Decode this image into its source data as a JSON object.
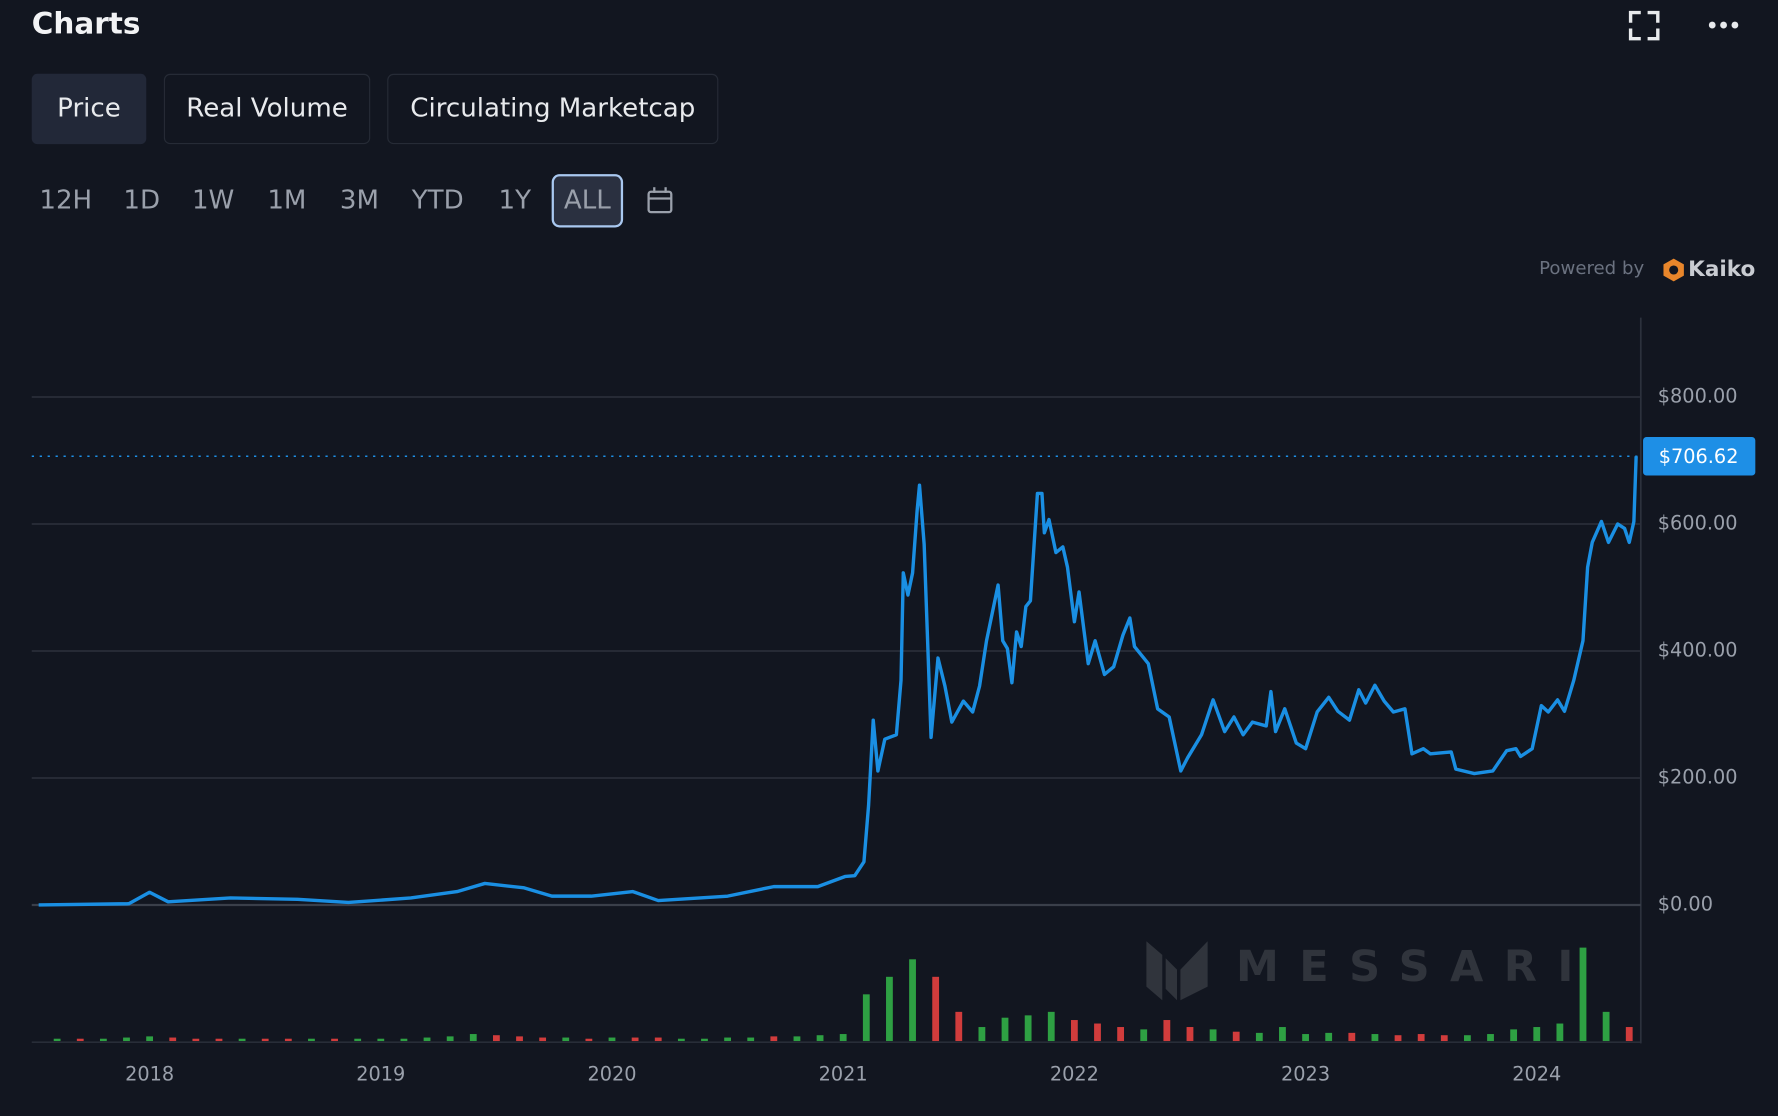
{
  "header": {
    "title": "Charts"
  },
  "tabs": [
    "Price",
    "Real Volume",
    "Circulating Marketcap"
  ],
  "ranges": [
    "12H",
    "1D",
    "1W",
    "1M",
    "3M",
    "YTD",
    "1Y",
    "ALL"
  ],
  "powered": {
    "text": "Powered by",
    "brand": "Kaiko"
  },
  "watermark": "MESSARI",
  "chart_data": {
    "type": "line",
    "x": [
      2017.52,
      2017.91,
      2018.0,
      2018.08,
      2018.35,
      2018.64,
      2018.86,
      2019.13,
      2019.33,
      2019.45,
      2019.62,
      2019.74,
      2019.91,
      2020.09,
      2020.2,
      2020.5,
      2020.7,
      2020.89,
      2021.01,
      2021.05,
      2021.09,
      2021.11,
      2021.13,
      2021.15,
      2021.18,
      2021.23,
      2021.25,
      2021.26,
      2021.28,
      2021.3,
      2021.32,
      2021.33,
      2021.35,
      2021.38,
      2021.41,
      2021.44,
      2021.47,
      2021.52,
      2021.56,
      2021.59,
      2021.62,
      2021.67,
      2021.69,
      2021.71,
      2021.73,
      2021.75,
      2021.77,
      2021.79,
      2021.81,
      2021.84,
      2021.86,
      2021.87,
      2021.89,
      2021.92,
      2021.95,
      2021.97,
      2022.0,
      2022.02,
      2022.06,
      2022.09,
      2022.13,
      2022.17,
      2022.21,
      2022.24,
      2022.26,
      2022.32,
      2022.36,
      2022.41,
      2022.46,
      2022.49,
      2022.55,
      2022.6,
      2022.65,
      2022.69,
      2022.73,
      2022.77,
      2022.83,
      2022.85,
      2022.87,
      2022.91,
      2022.96,
      2023.0,
      2023.05,
      2023.1,
      2023.14,
      2023.19,
      2023.23,
      2023.26,
      2023.3,
      2023.34,
      2023.38,
      2023.43,
      2023.46,
      2023.51,
      2023.54,
      2023.63,
      2023.65,
      2023.73,
      2023.81,
      2023.87,
      2023.91,
      2023.93,
      2023.98,
      2024.02,
      2024.05,
      2024.09,
      2024.12,
      2024.16,
      2024.2,
      2024.22,
      2024.24,
      2024.28,
      2024.31,
      2024.35,
      2024.38,
      2024.4,
      2024.42,
      2024.43
    ],
    "series": [
      {
        "name": "Price",
        "color": "#1a8fe3",
        "values": [
          0,
          2,
          20,
          5,
          11,
          9,
          4,
          11,
          21,
          34,
          27,
          14,
          14,
          21,
          7,
          14,
          29,
          29,
          45,
          46,
          68,
          157,
          291,
          211,
          261,
          268,
          354,
          523,
          488,
          523,
          621,
          661,
          568,
          264,
          389,
          345,
          288,
          321,
          304,
          345,
          416,
          504,
          416,
          404,
          350,
          430,
          407,
          470,
          479,
          648,
          648,
          586,
          607,
          555,
          564,
          532,
          446,
          493,
          380,
          416,
          363,
          375,
          425,
          452,
          407,
          380,
          309,
          296,
          211,
          232,
          268,
          323,
          273,
          296,
          268,
          288,
          282,
          336,
          273,
          309,
          255,
          246,
          304,
          327,
          305,
          291,
          339,
          318,
          346,
          321,
          304,
          309,
          238,
          246,
          238,
          241,
          214,
          207,
          211,
          243,
          246,
          234,
          246,
          314,
          304,
          323,
          305,
          354,
          416,
          532,
          571,
          604,
          571,
          600,
          593,
          571,
          604,
          706.62
        ]
      }
    ],
    "last_price": {
      "value": 706.62,
      "label": "$706.62"
    },
    "xlim": [
      2017.5,
      2024.45
    ],
    "xticks": [
      2018,
      2019,
      2020,
      2021,
      2022,
      2023,
      2024
    ],
    "ylim": [
      0,
      925
    ],
    "yticks": [
      {
        "value": 0,
        "label": "$0.00"
      },
      {
        "value": 200,
        "label": "$200.00"
      },
      {
        "value": 400,
        "label": "$400.00"
      },
      {
        "value": 600,
        "label": "$600.00"
      },
      {
        "value": 800,
        "label": "$800.00"
      }
    ],
    "grid": true,
    "volume": {
      "ylim": [
        0,
        100
      ],
      "x": [
        2017.6,
        2017.7,
        2017.8,
        2017.9,
        2018.0,
        2018.1,
        2018.2,
        2018.3,
        2018.4,
        2018.5,
        2018.6,
        2018.7,
        2018.8,
        2018.9,
        2019.0,
        2019.1,
        2019.2,
        2019.3,
        2019.4,
        2019.5,
        2019.6,
        2019.7,
        2019.8,
        2019.9,
        2020.0,
        2020.1,
        2020.2,
        2020.3,
        2020.4,
        2020.5,
        2020.6,
        2020.7,
        2020.8,
        2020.9,
        2021.0,
        2021.1,
        2021.2,
        2021.3,
        2021.4,
        2021.5,
        2021.6,
        2021.7,
        2021.8,
        2021.9,
        2022.0,
        2022.1,
        2022.2,
        2022.3,
        2022.4,
        2022.5,
        2022.6,
        2022.7,
        2022.8,
        2022.9,
        2023.0,
        2023.1,
        2023.2,
        2023.3,
        2023.4,
        2023.5,
        2023.6,
        2023.7,
        2023.8,
        2023.9,
        2024.0,
        2024.1,
        2024.2,
        2024.3,
        2024.4
      ],
      "values": [
        2,
        2,
        2,
        3,
        4,
        3,
        2,
        2,
        2,
        2,
        2,
        2,
        2,
        2,
        2,
        2,
        3,
        4,
        6,
        5,
        4,
        3,
        3,
        2,
        3,
        3,
        3,
        2,
        2,
        3,
        3,
        4,
        4,
        5,
        6,
        40,
        55,
        70,
        55,
        25,
        12,
        20,
        22,
        25,
        18,
        15,
        12,
        10,
        18,
        12,
        10,
        8,
        7,
        12,
        6,
        7,
        7,
        6,
        5,
        6,
        5,
        5,
        6,
        10,
        12,
        15,
        80,
        25,
        12
      ],
      "colors": [
        "#2ea043",
        "#d13c3c",
        "#2ea043",
        "#2ea043",
        "#2ea043",
        "#d13c3c",
        "#d13c3c",
        "#d13c3c",
        "#2ea043",
        "#d13c3c",
        "#d13c3c",
        "#2ea043",
        "#d13c3c",
        "#2ea043",
        "#2ea043",
        "#2ea043",
        "#2ea043",
        "#2ea043",
        "#2ea043",
        "#d13c3c",
        "#d13c3c",
        "#d13c3c",
        "#2ea043",
        "#d13c3c",
        "#2ea043",
        "#d13c3c",
        "#d13c3c",
        "#2ea043",
        "#2ea043",
        "#2ea043",
        "#2ea043",
        "#d13c3c",
        "#2ea043",
        "#2ea043",
        "#2ea043",
        "#2ea043",
        "#2ea043",
        "#2ea043",
        "#d13c3c",
        "#d13c3c",
        "#2ea043",
        "#2ea043",
        "#2ea043",
        "#2ea043",
        "#d13c3c",
        "#d13c3c",
        "#d13c3c",
        "#2ea043",
        "#d13c3c",
        "#d13c3c",
        "#2ea043",
        "#d13c3c",
        "#2ea043",
        "#2ea043",
        "#2ea043",
        "#2ea043",
        "#d13c3c",
        "#2ea043",
        "#d13c3c",
        "#d13c3c",
        "#d13c3c",
        "#2ea043",
        "#2ea043",
        "#2ea043",
        "#2ea043",
        "#2ea043",
        "#2ea043",
        "#2ea043",
        "#d13c3c"
      ]
    }
  }
}
